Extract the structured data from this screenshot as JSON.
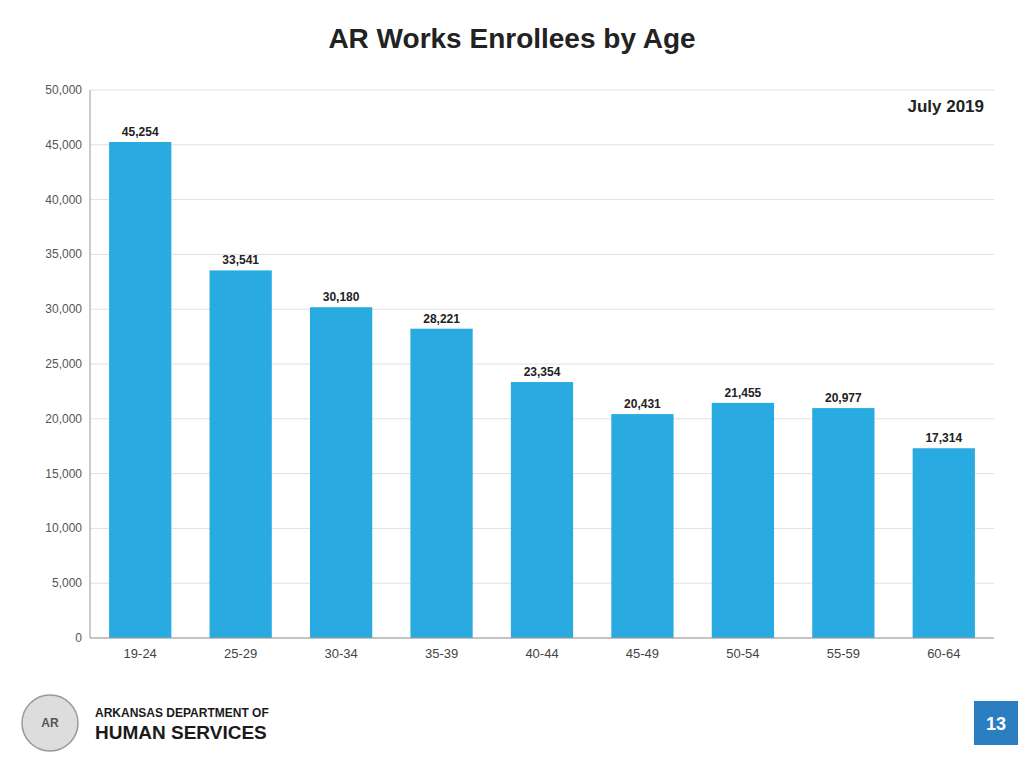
{
  "chart_data": {
    "type": "bar",
    "title": "AR Works Enrollees by Age",
    "subtitle": "July 2019",
    "categories": [
      "19-24",
      "25-29",
      "30-34",
      "35-39",
      "40-44",
      "45-49",
      "50-54",
      "55-59",
      "60-64"
    ],
    "values": [
      45254,
      33541,
      30180,
      28221,
      23354,
      20431,
      21455,
      20977,
      17314
    ],
    "value_labels": [
      "45,254",
      "33,541",
      "30,180",
      "28,221",
      "23,354",
      "20,431",
      "21,455",
      "20,977",
      "17,314"
    ],
    "data_labels": true,
    "color": "#29ABE2",
    "ylim": [
      0,
      50000
    ],
    "yticks": [
      0,
      {
        "value": 5000,
        "label": "5,000"
      },
      {
        "value": 10000,
        "label": "10,000"
      },
      {
        "value": 15000,
        "label": "15,000"
      },
      {
        "value": 20000,
        "label": "20,000"
      },
      {
        "value": 25000,
        "label": "25,000"
      },
      {
        "value": 30000,
        "label": "30,000"
      },
      {
        "value": 35000,
        "label": "35,000"
      },
      {
        "value": 40000,
        "label": "40,000"
      },
      {
        "value": 45000,
        "label": "45,000"
      },
      {
        "value": 50000,
        "label": "50,000"
      }
    ],
    "grid": true,
    "annotations": [
      "AR",
      "ARKANSAS DEPARTMENT OF",
      "HUMAN SERVICES",
      "13"
    ]
  }
}
